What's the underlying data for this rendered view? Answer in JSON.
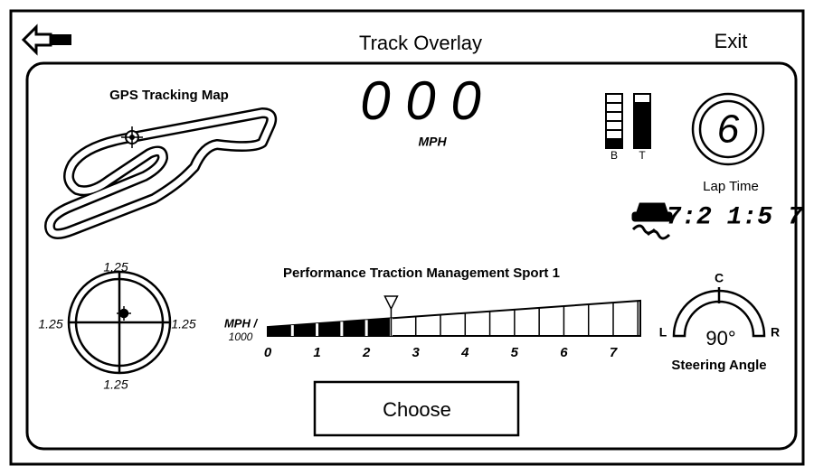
{
  "header": {
    "title": "Track Overlay",
    "exit": "Exit"
  },
  "map": {
    "label": "GPS Tracking Map"
  },
  "speed": {
    "digits": "0 0 0",
    "unit": "MPH"
  },
  "bars": {
    "b": "B",
    "t": "T"
  },
  "gear": "6",
  "lap": {
    "label": "Lap Time",
    "time": "7:2 1:5 7"
  },
  "g_meter": {
    "top": "1.25",
    "bottom": "1.25",
    "left": "1.25",
    "right": "1.25"
  },
  "traction": {
    "title": "Performance Traction Management Sport 1",
    "unit": [
      "MPH /",
      "1000"
    ],
    "ticks": [
      0,
      1,
      2,
      3,
      4,
      5,
      6,
      7
    ],
    "value": 2.5
  },
  "steering": {
    "c": "C",
    "l": "L",
    "r": "R",
    "angle": "90°",
    "label": "Steering Angle"
  },
  "button": "Choose"
}
